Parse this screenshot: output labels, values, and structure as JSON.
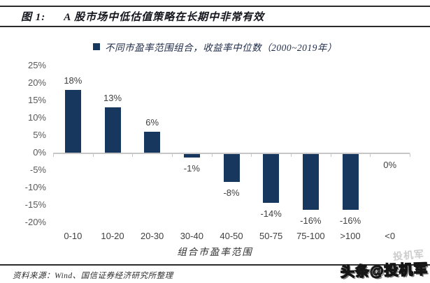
{
  "header": {
    "figure_label": "图 1:",
    "title": "A 股市场中低估值策略在长期中非常有效"
  },
  "legend": {
    "marker_color": "#17375E",
    "label": "不同市盈率范围组合，收益率中位数（2000~2019年）"
  },
  "chart_data": {
    "type": "bar",
    "title": "不同市盈率范围组合，收益率中位数（2000~2019年）",
    "categories": [
      "0-10",
      "10-20",
      "20-30",
      "30-40",
      "40-50",
      "50-75",
      "75-100",
      ">100",
      "<0"
    ],
    "values": [
      18,
      13,
      6,
      -1,
      -8,
      -14,
      -16,
      -16,
      0
    ],
    "value_labels": [
      "18%",
      "13%",
      "6%",
      "-1%",
      "-8%",
      "-14%",
      "-16%",
      "-16%",
      "0%"
    ],
    "xlabel": "组合市盈率范围",
    "ylabel": "",
    "ylim": [
      -20,
      25
    ],
    "ytick_labels": [
      "25%",
      "20%",
      "15%",
      "10%",
      "5%",
      "0%",
      "-5%",
      "-10%",
      "-15%",
      "-20%"
    ],
    "grid": false,
    "legend_position": "top-center",
    "bar_color": "#17375E",
    "axis_color": "#c6c6c6",
    "value_label_color": "#404040",
    "ytick_color": "#595959"
  },
  "footer": {
    "source": "资料来源：Wind、国信证券经济研究所整理"
  },
  "watermark": {
    "text": "头条@投机军",
    "ghost_text": "投机军"
  }
}
